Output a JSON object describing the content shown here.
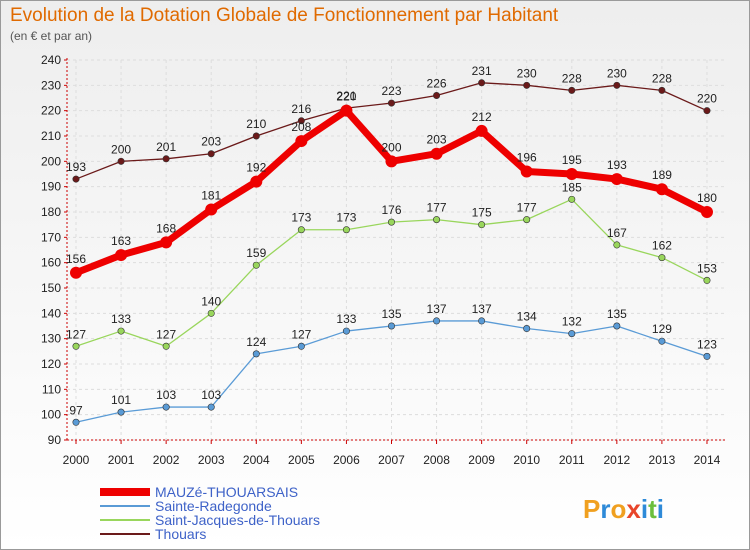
{
  "chart_data": {
    "type": "line",
    "title": "Evolution de la Dotation Globale de Fonctionnement par Habitant",
    "subtitle": "(en € et par an)",
    "xlabel": "",
    "ylabel": "",
    "categories": [
      "2000",
      "2001",
      "2002",
      "2003",
      "2004",
      "2005",
      "2006",
      "2007",
      "2008",
      "2009",
      "2010",
      "2011",
      "2012",
      "2013",
      "2014"
    ],
    "ylim": [
      90,
      240
    ],
    "yticks": [
      90,
      100,
      110,
      120,
      130,
      140,
      150,
      160,
      170,
      180,
      190,
      200,
      210,
      220,
      230,
      240
    ],
    "grid": true,
    "legend_position": "bottom-left",
    "series": [
      {
        "name": "Thouars",
        "color": "#6b1a1a",
        "width": 1.3,
        "marker": 3.2,
        "values": [
          193,
          200,
          201,
          203,
          210,
          216,
          221,
          223,
          226,
          231,
          230,
          228,
          230,
          228,
          220
        ]
      },
      {
        "name": "Saint-Jacques-de-Thouars",
        "color": "#99d65c",
        "width": 1.3,
        "marker": 3.2,
        "values": [
          127,
          133,
          127,
          140,
          159,
          173,
          173,
          176,
          177,
          175,
          177,
          185,
          167,
          162,
          153
        ]
      },
      {
        "name": "Sainte-Radegonde",
        "color": "#5a9bd6",
        "width": 1.3,
        "marker": 3.2,
        "values": [
          97,
          101,
          103,
          103,
          124,
          127,
          133,
          135,
          137,
          137,
          134,
          132,
          135,
          129,
          123
        ]
      },
      {
        "name": "MAUZé-THOUARSAIS",
        "color": "#ee0000",
        "width": 7,
        "marker": 6,
        "values": [
          156,
          163,
          168,
          181,
          192,
          208,
          220,
          200,
          203,
          212,
          196,
          195,
          193,
          189,
          180
        ]
      }
    ],
    "legend_order": [
      "MAUZé-THOUARSAIS",
      "Sainte-Radegonde",
      "Saint-Jacques-de-Thouars",
      "Thouars"
    ]
  },
  "logo": {
    "letters": [
      "P",
      "r",
      "o",
      "x",
      "i",
      "t",
      "i"
    ],
    "colors": [
      "#f0a020",
      "#2e8ad8",
      "#f0a020",
      "#e8452a",
      "#2e8ad8",
      "#6cbf3c",
      "#2e8ad8"
    ]
  }
}
